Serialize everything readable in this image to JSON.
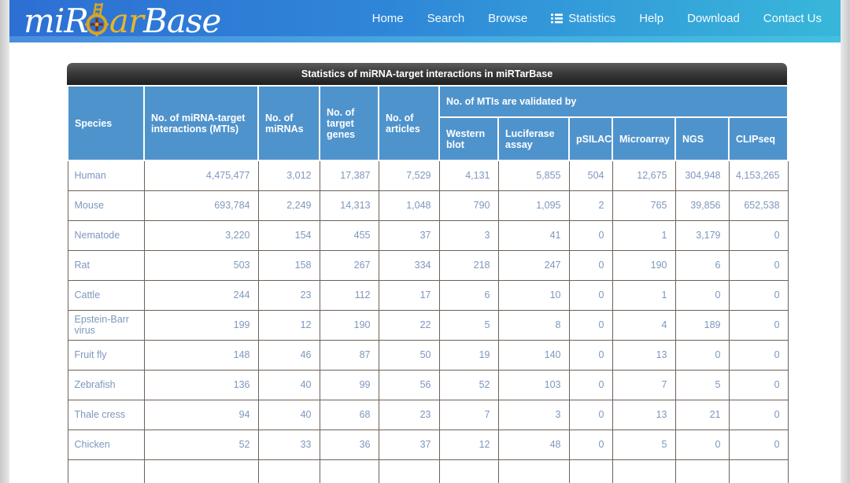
{
  "logo": {
    "part1": "miR",
    "part2": "ar",
    "part3": "Base",
    "icon": "target-scope-icon"
  },
  "nav": {
    "items": [
      {
        "label": "Home"
      },
      {
        "label": "Search"
      },
      {
        "label": "Browse"
      },
      {
        "label": "Statistics",
        "icon": "list-icon"
      },
      {
        "label": "Help"
      },
      {
        "label": "Download"
      },
      {
        "label": "Contact Us"
      }
    ]
  },
  "table": {
    "title": "Statistics of miRNA-target interactions in miRTarBase",
    "main_columns": [
      "Species",
      "No. of miRNA-target interactions (MTIs)",
      "No. of miRNAs",
      "No. of target genes",
      "No. of articles"
    ],
    "validated_group": "No. of MTIs are validated by",
    "validated_columns": [
      "Western blot",
      "Luciferase assay",
      "pSILAC",
      "Microarray",
      "NGS",
      "CLIPseq"
    ],
    "rows": [
      {
        "species": "Human",
        "values": [
          "4,475,477",
          "3,012",
          "17,387",
          "7,529",
          "4,131",
          "5,855",
          "504",
          "12,675",
          "304,948",
          "4,153,265"
        ]
      },
      {
        "species": "Mouse",
        "values": [
          "693,784",
          "2,249",
          "14,313",
          "1,048",
          "790",
          "1,095",
          "2",
          "765",
          "39,856",
          "652,538"
        ]
      },
      {
        "species": "Nematode",
        "values": [
          "3,220",
          "154",
          "455",
          "37",
          "3",
          "41",
          "0",
          "1",
          "3,179",
          "0"
        ]
      },
      {
        "species": "Rat",
        "values": [
          "503",
          "158",
          "267",
          "334",
          "218",
          "247",
          "0",
          "190",
          "6",
          "0"
        ]
      },
      {
        "species": "Cattle",
        "values": [
          "244",
          "23",
          "112",
          "17",
          "6",
          "10",
          "0",
          "1",
          "0",
          "0"
        ]
      },
      {
        "species": "Epstein-Barr virus",
        "values": [
          "199",
          "12",
          "190",
          "22",
          "5",
          "8",
          "0",
          "4",
          "189",
          "0"
        ]
      },
      {
        "species": "Fruit fly",
        "values": [
          "148",
          "46",
          "87",
          "50",
          "19",
          "140",
          "0",
          "13",
          "0",
          "0"
        ]
      },
      {
        "species": "Zebrafish",
        "values": [
          "136",
          "40",
          "99",
          "56",
          "52",
          "103",
          "0",
          "7",
          "5",
          "0"
        ]
      },
      {
        "species": "Thale cress",
        "values": [
          "94",
          "40",
          "68",
          "23",
          "7",
          "3",
          "0",
          "13",
          "21",
          "0"
        ]
      },
      {
        "species": "Chicken",
        "values": [
          "52",
          "33",
          "36",
          "37",
          "12",
          "48",
          "0",
          "5",
          "0",
          "0"
        ]
      }
    ]
  },
  "colors": {
    "header_gradient_start": "#2d6fd3",
    "header_gradient_end": "#38b7da",
    "logo_gold": "#e8b429",
    "table_title_bg": "#2b2b2b",
    "table_header_blue": "#4f93cd",
    "cell_text": "#7f97bd",
    "cell_border": "#6e6158"
  }
}
